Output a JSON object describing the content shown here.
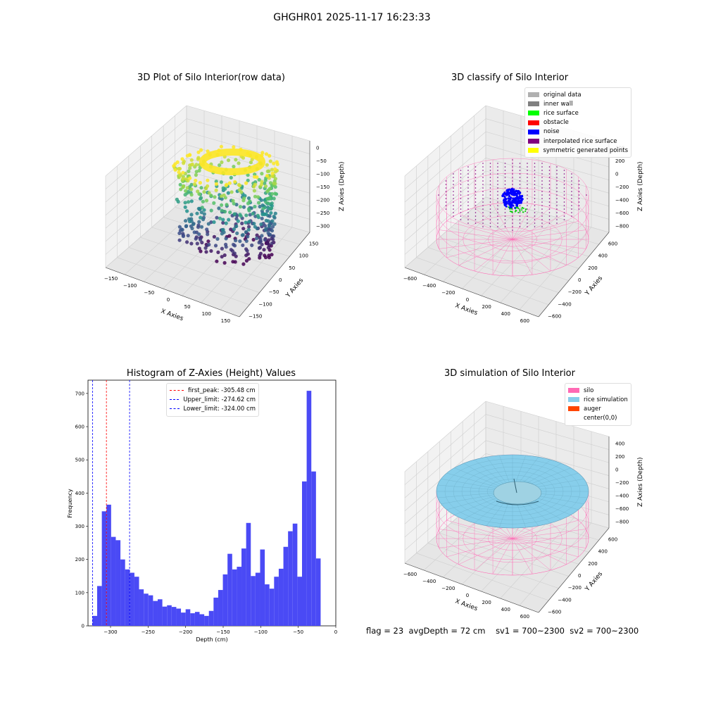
{
  "suptitle": "GHGHR01 2025-11-17 16:23:33",
  "footer": {
    "flag": "flag = 23",
    "avg_depth": "avgDepth = 72 cm",
    "sv1": "sv1 = 700~2300",
    "sv2": "sv2 = 700~2300"
  },
  "chart_data": [
    {
      "type": "scatter",
      "title": "3D Plot of Silo Interior(row data)",
      "xlabel": "X Axies",
      "ylabel": "Y Axies",
      "zlabel": "Z Axies (Depth)",
      "xticks": [
        "−150",
        "−100",
        "−50",
        "0",
        "50",
        "100",
        "150"
      ],
      "yticks": [
        "150",
        "100",
        "50",
        "0",
        "−50",
        "−100",
        "−150"
      ],
      "zticks": [
        "0",
        "−50",
        "−100",
        "−150",
        "−200",
        "−250",
        "−300"
      ],
      "xlim": [
        -175,
        175
      ],
      "ylim": [
        -175,
        175
      ],
      "zlim": [
        -340,
        0
      ],
      "colormap": "viridis",
      "grid": true
    },
    {
      "type": "scatter",
      "title": "3D classify of Silo Interior",
      "xlabel": "X Axies",
      "ylabel": "Y Axies",
      "zlabel": "Z Axies (Depth)",
      "xticks": [
        "−600",
        "−400",
        "−200",
        "0",
        "200",
        "400",
        "600"
      ],
      "yticks": [
        "600",
        "400",
        "200",
        "0",
        "−200",
        "−400",
        "−600"
      ],
      "zticks": [
        "400",
        "200",
        "0",
        "−200",
        "−400",
        "−600",
        "−800"
      ],
      "legend_position": "top-right",
      "legend": [
        {
          "label": "original data",
          "color": "#b0b0b0"
        },
        {
          "label": "inner wall",
          "color": "#808080"
        },
        {
          "label": "rice surface",
          "color": "#00ff00"
        },
        {
          "label": "obstacle",
          "color": "#ff0000"
        },
        {
          "label": "noise",
          "color": "#0000ff"
        },
        {
          "label": "interpolated rice surface",
          "color": "#800080"
        },
        {
          "label": "symmetric generated points",
          "color": "#ffff00"
        }
      ],
      "grid": true
    },
    {
      "type": "bar",
      "title": "Histogram of Z-Axies (Height) Values",
      "xlabel": "Depth (cm)",
      "ylabel": "Frequency",
      "xlim": [
        -330,
        0
      ],
      "ylim": [
        0,
        740
      ],
      "xticks": [
        -300,
        -250,
        -200,
        -150,
        -100,
        -50,
        0
      ],
      "yticks": [
        0,
        100,
        200,
        300,
        400,
        500,
        600,
        700
      ],
      "bar_color": "#4a4af5",
      "bin_start": -324,
      "bin_width": 6.2,
      "values": [
        30,
        120,
        345,
        365,
        268,
        258,
        200,
        170,
        160,
        148,
        110,
        97,
        92,
        75,
        80,
        58,
        62,
        57,
        52,
        40,
        50,
        38,
        42,
        35,
        30,
        45,
        85,
        108,
        155,
        217,
        170,
        178,
        233,
        310,
        150,
        160,
        230,
        125,
        112,
        148,
        172,
        238,
        285,
        308,
        148,
        435,
        708,
        465,
        203
      ],
      "legend_position": "top-center",
      "reference_lines": [
        {
          "label": "first_peak: -305.48 cm",
          "x": -305.48,
          "color": "#ff0000"
        },
        {
          "label": "Upper_limit: -274.62 cm",
          "x": -274.62,
          "color": "#0000ff"
        },
        {
          "label": "Lower_limit: -324.00 cm",
          "x": -324.0,
          "color": "#0000ff"
        }
      ]
    },
    {
      "type": "scatter",
      "title": "3D simulation of Silo Interior",
      "xlabel": "X Axies",
      "ylabel": "Y Axies",
      "zlabel": "Z Axies (Depth)",
      "xticks": [
        "−600",
        "−400",
        "−200",
        "0",
        "200",
        "400",
        "600"
      ],
      "yticks": [
        "600",
        "400",
        "200",
        "0",
        "−200",
        "−400",
        "−600"
      ],
      "zticks": [
        "400",
        "200",
        "0",
        "−200",
        "−400",
        "−600",
        "−800"
      ],
      "legend_position": "top-right",
      "legend": [
        {
          "label": "silo",
          "color": "#ff69b4"
        },
        {
          "label": "rice simulation",
          "color": "#87ceeb"
        },
        {
          "label": "auger",
          "color": "#ff4500"
        },
        {
          "label": "center(0,0)",
          "color": "#ffffff"
        }
      ],
      "grid": true
    }
  ]
}
